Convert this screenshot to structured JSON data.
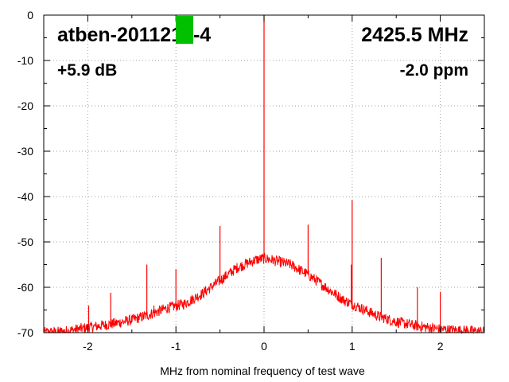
{
  "chart_data": {
    "type": "line",
    "title": "",
    "xlabel": "MHz from nominal frequency of test wave",
    "ylabel": "",
    "xlim": [
      -2.5,
      2.5
    ],
    "ylim": [
      -70,
      0
    ],
    "grid": true,
    "x_ticks": [
      -2,
      -1,
      0,
      1,
      2
    ],
    "x_tick_labels": [
      "-2",
      "-1",
      "0",
      "1",
      "2"
    ],
    "y_ticks": [
      0,
      -10,
      -20,
      -30,
      -40,
      -50,
      -60,
      -70
    ],
    "y_tick_labels": [
      "0",
      "-10",
      "-20",
      "-30",
      "-40",
      "-50",
      "-60",
      "-70"
    ],
    "annotations": {
      "device": "atben-2011",
      "device_suffix": "219-4",
      "frequency": "2425.5 MHz",
      "gain": "+5.9 dB",
      "offset": "-2.0 ppm"
    },
    "marker_color": "#00c000",
    "series": [
      {
        "color": "#ff0000",
        "envelope": [
          [
            -2.5,
            -70.0
          ],
          [
            -2.3,
            -69.8
          ],
          [
            -2.1,
            -69.2
          ],
          [
            -1.9,
            -68.6
          ],
          [
            -1.7,
            -68.0
          ],
          [
            -1.5,
            -67.2
          ],
          [
            -1.3,
            -66.0
          ],
          [
            -1.1,
            -64.6
          ],
          [
            -0.9,
            -63.6
          ],
          [
            -0.7,
            -61.4
          ],
          [
            -0.5,
            -58.5
          ],
          [
            -0.3,
            -55.6
          ],
          [
            -0.1,
            -54.0
          ],
          [
            0.0,
            -53.6
          ],
          [
            0.1,
            -54.0
          ],
          [
            0.3,
            -55.0
          ],
          [
            0.5,
            -57.2
          ],
          [
            0.7,
            -60.0
          ],
          [
            0.9,
            -62.8
          ],
          [
            1.1,
            -64.6
          ],
          [
            1.3,
            -66.4
          ],
          [
            1.5,
            -67.6
          ],
          [
            1.7,
            -68.4
          ],
          [
            1.9,
            -69.0
          ],
          [
            2.1,
            -69.4
          ],
          [
            2.3,
            -69.6
          ],
          [
            2.5,
            -69.8
          ]
        ],
        "spikes": [
          [
            -2.3,
            -69.0
          ],
          [
            -1.99,
            -64.0
          ],
          [
            -1.74,
            -61.2
          ],
          [
            -1.33,
            -55.0
          ],
          [
            -1.25,
            -64.0
          ],
          [
            -1.0,
            -56.0
          ],
          [
            -0.5,
            -46.5
          ],
          [
            0.0,
            0.0
          ],
          [
            0.5,
            -46.2
          ],
          [
            0.99,
            -55.0
          ],
          [
            1.0,
            -40.8
          ],
          [
            1.33,
            -53.5
          ],
          [
            1.74,
            -60.0
          ],
          [
            2.0,
            -61.0
          ],
          [
            2.3,
            -68.5
          ]
        ]
      }
    ]
  }
}
